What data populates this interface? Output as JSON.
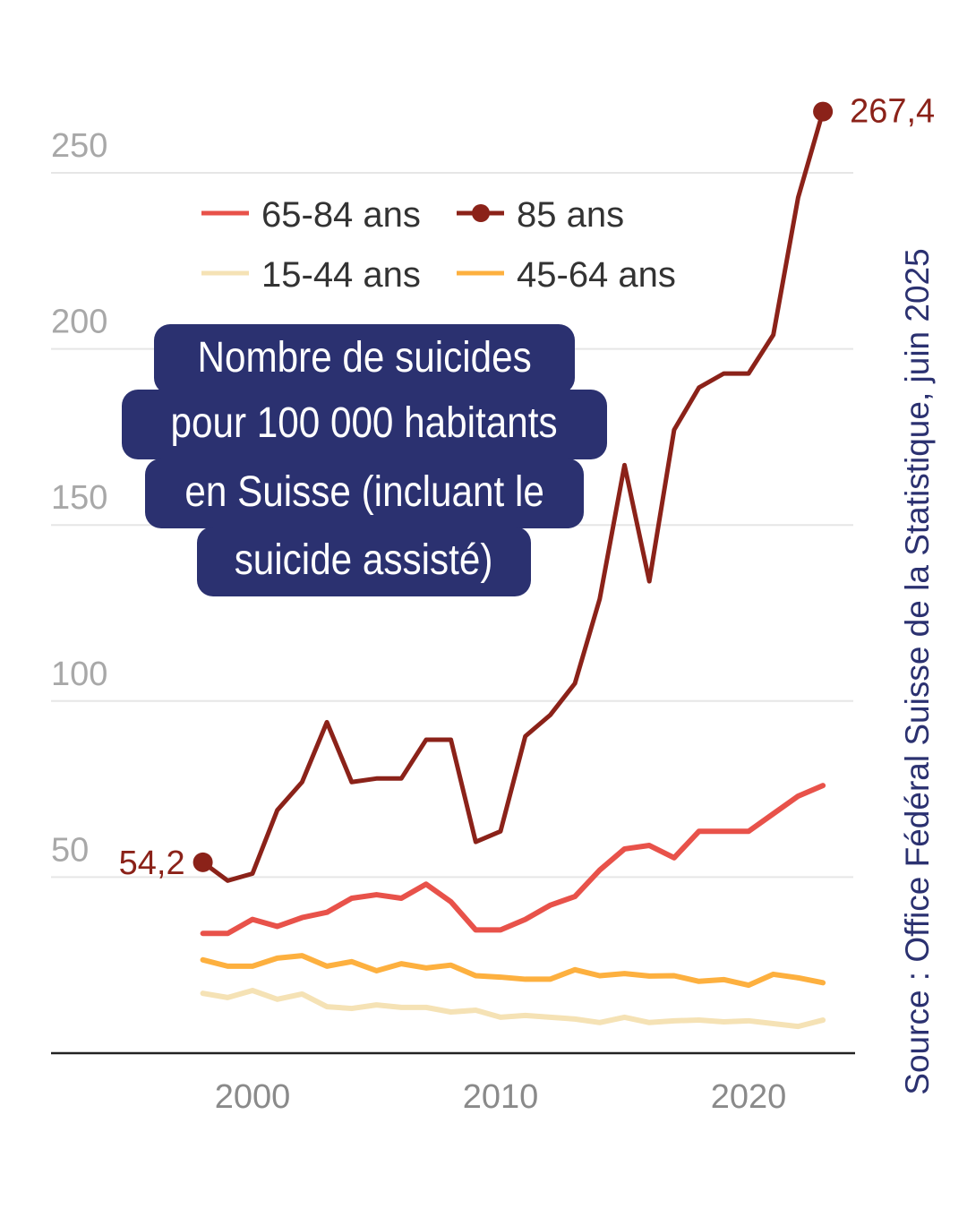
{
  "chart_data": {
    "type": "line",
    "title": "Nombre de suicides pour 100 000 habitants en Suisse (incluant le suicide assisté)",
    "title_lines": [
      "Nombre de suicides",
      "pour 100 000 habitants",
      "en Suisse (incluant le",
      "suicide assisté)"
    ],
    "source": "Source : Office Fédéral Suisse de la Statistique, juin 2025",
    "x": [
      1998,
      1999,
      2000,
      2001,
      2002,
      2003,
      2004,
      2005,
      2006,
      2007,
      2008,
      2009,
      2010,
      2011,
      2012,
      2013,
      2014,
      2015,
      2016,
      2017,
      2018,
      2019,
      2020,
      2021,
      2022,
      2023
    ],
    "xlim": [
      1993,
      2025
    ],
    "ylim": [
      0,
      270
    ],
    "x_ticks": [
      2000,
      2010,
      2020
    ],
    "x_tick_labels": [
      "2000",
      "2010",
      "2020"
    ],
    "y_ticks": [
      50,
      100,
      150,
      200,
      250
    ],
    "y_tick_labels": [
      "50",
      "100",
      "150",
      "200",
      "250"
    ],
    "grid": "horizontal",
    "legend_placement": "top-left",
    "series": [
      {
        "name": "65-84 ans",
        "color": "#e8524a",
        "marker": false,
        "values": [
          34,
          34,
          38,
          36,
          38.5,
          40,
          44,
          45,
          44,
          48,
          43,
          35,
          35,
          38,
          42,
          44.5,
          52,
          58,
          59,
          55.5,
          63,
          63,
          63,
          68,
          73,
          76
        ]
      },
      {
        "name": "85 ans",
        "color": "#8b2219",
        "marker": true,
        "values": [
          54.2,
          49,
          51,
          69,
          77,
          94,
          77,
          78,
          78,
          89,
          89,
          60,
          63,
          90,
          96,
          105,
          129,
          167,
          134,
          177,
          189,
          193,
          193,
          204,
          243,
          267.4
        ]
      },
      {
        "name": "15-44 ans",
        "color": "#f5e2b5",
        "marker": false,
        "values": [
          17,
          15.8,
          17.8,
          15.3,
          16.8,
          13.2,
          12.7,
          13.7,
          13,
          13,
          11.7,
          12.2,
          10.2,
          10.7,
          10.2,
          9.7,
          8.7,
          10.2,
          8.7,
          9.2,
          9.4,
          8.9,
          9.2,
          8.4,
          7.6,
          9.4
        ]
      },
      {
        "name": "45-64 ans",
        "color": "#fdb03f",
        "marker": false,
        "values": [
          26.5,
          24.7,
          24.7,
          27,
          27.7,
          24.7,
          26,
          23.4,
          25.4,
          24.2,
          25,
          22,
          21.6,
          21,
          21,
          23.7,
          22,
          22.6,
          21.9,
          22,
          20.4,
          20.9,
          19.3,
          22.4,
          21.4,
          20
        ]
      }
    ],
    "annotations": {
      "first": "54,2",
      "last": "267,4"
    },
    "title_color": "#2b3170"
  }
}
